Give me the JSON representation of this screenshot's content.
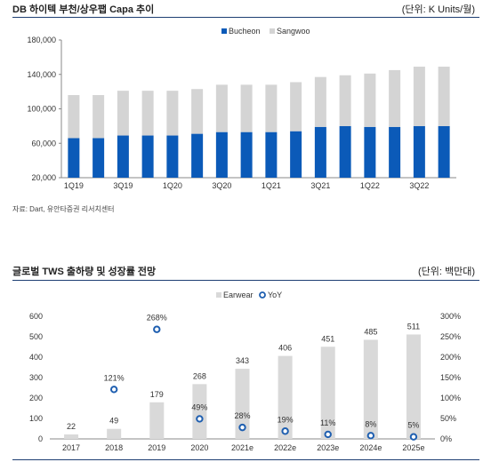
{
  "chart1": {
    "title": "DB 하이텍 부천/상우팹 Capa 추이",
    "unit": "(단위: K Units/월)",
    "source": "자료: Dart, 유안타증권 리서치센터"
  },
  "chart2": {
    "title": "글로벌 TWS 출하량 및 성장률 전망",
    "unit": "(단위: 백만대)"
  },
  "colors": {
    "bucheon": "#0b5ab8",
    "sangwoo": "#d4d4d4",
    "earwear": "#d9d9d9",
    "yoy": "#1f5fb0",
    "rule": "#1e3f73"
  },
  "chart_data": [
    {
      "type": "bar",
      "stacked": true,
      "categories": [
        "1Q19",
        "2Q19",
        "3Q19",
        "4Q19",
        "1Q20",
        "2Q20",
        "3Q20",
        "4Q20",
        "1Q21",
        "2Q21",
        "3Q21",
        "4Q21",
        "1Q22",
        "2Q22",
        "3Q22",
        "4Q22"
      ],
      "tick_labels": [
        "1Q19",
        "3Q19",
        "1Q20",
        "3Q20",
        "1Q21",
        "3Q21",
        "1Q22",
        "3Q22"
      ],
      "series": [
        {
          "name": "Bucheon",
          "values": [
            66000,
            66000,
            69000,
            69000,
            69000,
            71000,
            73000,
            73000,
            73000,
            74000,
            79000,
            80000,
            79000,
            79000,
            80000,
            80000
          ]
        },
        {
          "name": "Sangwoo",
          "values": [
            50000,
            50000,
            52000,
            52000,
            52000,
            52000,
            55000,
            55000,
            55000,
            57000,
            58000,
            59000,
            62000,
            66000,
            69000,
            69000
          ]
        }
      ],
      "ylim": [
        20000,
        180000
      ],
      "yticks": [
        "20,000",
        "60,000",
        "100,000",
        "140,000",
        "180,000"
      ],
      "legend": "top-right",
      "grid": false
    },
    {
      "type": "bar+line",
      "categories": [
        "2017",
        "2018",
        "2019",
        "2020",
        "2021e",
        "2022e",
        "2023e",
        "2024e",
        "2025e"
      ],
      "series": [
        {
          "name": "Earwear",
          "type": "bar",
          "values": [
            22,
            49,
            179,
            268,
            343,
            406,
            451,
            485,
            511
          ],
          "labels": [
            "22",
            "49",
            "179",
            "268",
            "343",
            "406",
            "451",
            "485",
            "511"
          ]
        },
        {
          "name": "YoY",
          "type": "scatter",
          "axis": "right",
          "values": [
            null,
            121,
            268,
            49,
            28,
            19,
            11,
            8,
            5
          ],
          "labels": [
            "",
            "121%",
            "268%",
            "49%",
            "28%",
            "19%",
            "11%",
            "8%",
            "5%"
          ]
        }
      ],
      "ylim": [
        0,
        600
      ],
      "y2lim": [
        0,
        300
      ],
      "yticks": [
        "0",
        "100",
        "200",
        "300",
        "400",
        "500",
        "600"
      ],
      "y2ticks": [
        "0%",
        "50%",
        "100%",
        "150%",
        "200%",
        "250%",
        "300%"
      ],
      "legend": "top-center",
      "grid": false
    }
  ]
}
